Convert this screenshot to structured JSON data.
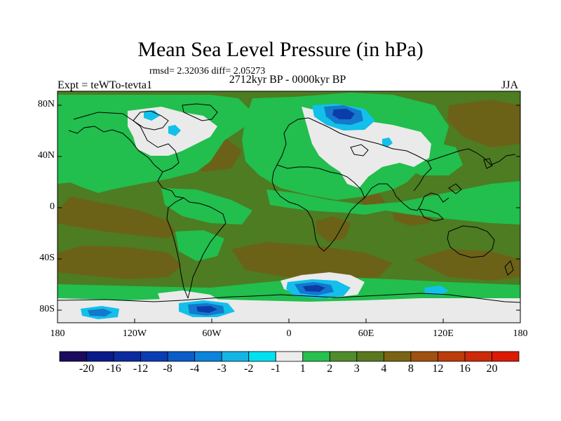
{
  "title": "Mean Sea Level Pressure (in hPa)",
  "stats": "rmsd= 2.32036 diff= 2.05273",
  "subtitle": "2712kyr BP - 0000kyr BP",
  "experiment": "Expt = teWTo-tevta1",
  "season": "JJA",
  "map": {
    "lat_labels": [
      "80N",
      "40N",
      "0",
      "40S",
      "80S"
    ],
    "lon_labels": [
      "180",
      "120W",
      "60W",
      "0",
      "60E",
      "120E",
      "180"
    ]
  },
  "colorbar": {
    "labels": [
      "-20",
      "-16",
      "-12",
      "-8",
      "-4",
      "-3",
      "-2",
      "-1",
      "1",
      "2",
      "3",
      "4",
      "8",
      "12",
      "16",
      "20"
    ],
    "colors": [
      "#1b0a5e",
      "#0a1a8a",
      "#0a2aa0",
      "#0a3cb4",
      "#0a5cc8",
      "#0a84dc",
      "#16b4e6",
      "#00e0f0",
      "#ececec",
      "#28c050",
      "#508c2c",
      "#5a7820",
      "#7a6414",
      "#a05010",
      "#bc3c0c",
      "#cc2a08",
      "#dc1a04"
    ]
  },
  "palette": {
    "ocean_base": "#4d7c22",
    "dark_anomaly": "#6b6218",
    "light_green": "#22be4e",
    "near_zero": "#eaeaea",
    "light_blue": "#12c0ea",
    "mid_blue": "#1478cc",
    "deep_blue": "#0c3ca8"
  }
}
